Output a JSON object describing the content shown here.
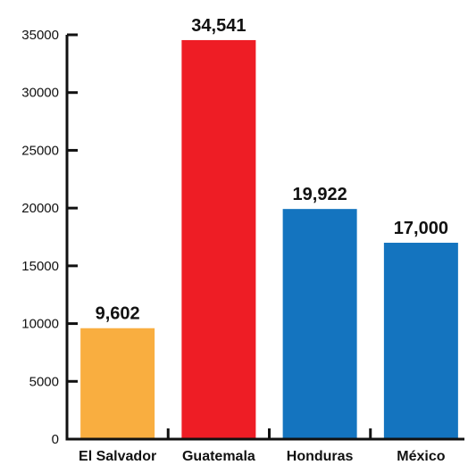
{
  "chart_data": {
    "type": "bar",
    "title": "",
    "xlabel": "",
    "ylabel": "",
    "categories": [
      "El Salvador",
      "Guatemala",
      "Honduras",
      "México"
    ],
    "values": [
      9602,
      34541,
      19922,
      17000
    ],
    "value_labels": [
      "9,602",
      "34,541",
      "19,922",
      "17,000"
    ],
    "bar_colors": [
      "#F9AE40",
      "#EE1D25",
      "#1474BF",
      "#1474BF"
    ],
    "ylim": [
      0,
      35000
    ],
    "yticks": [
      0,
      5000,
      10000,
      15000,
      20000,
      25000,
      30000,
      35000
    ],
    "ytick_labels": [
      "0",
      "5000",
      "10000",
      "15000",
      "20000",
      "25000",
      "30000",
      "35000"
    ],
    "grid": false,
    "legend": "none"
  }
}
